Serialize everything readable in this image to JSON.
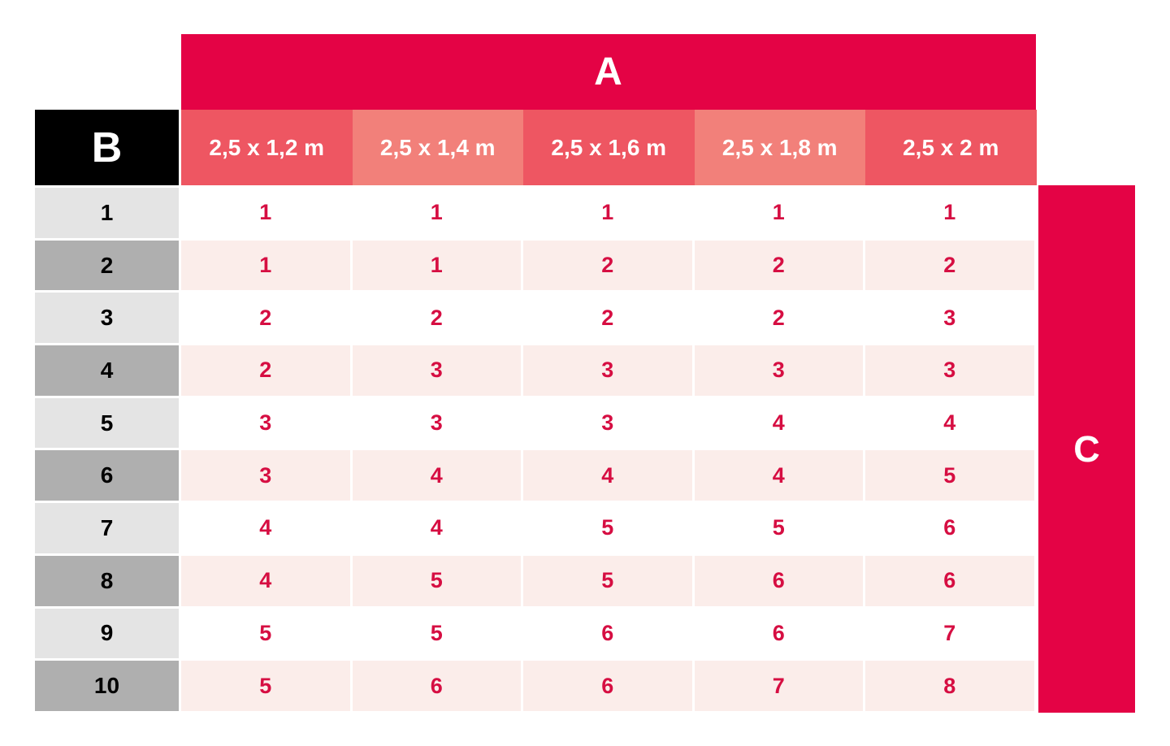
{
  "chart_data": {
    "type": "table",
    "top_header": "A",
    "left_header": "B",
    "right_header": "C",
    "columns": [
      "2,5 x 1,2 m",
      "2,5 x 1,4 m",
      "2,5 x 1,6 m",
      "2,5 x 1,8 m",
      "2,5 x 2 m"
    ],
    "row_labels": [
      "1",
      "2",
      "3",
      "4",
      "5",
      "6",
      "7",
      "8",
      "9",
      "10"
    ],
    "values": [
      [
        1,
        1,
        1,
        1,
        1
      ],
      [
        1,
        1,
        2,
        2,
        2
      ],
      [
        2,
        2,
        2,
        2,
        3
      ],
      [
        2,
        3,
        3,
        3,
        3
      ],
      [
        3,
        3,
        3,
        4,
        4
      ],
      [
        3,
        4,
        4,
        4,
        5
      ],
      [
        4,
        4,
        5,
        5,
        6
      ],
      [
        4,
        5,
        5,
        6,
        6
      ],
      [
        5,
        5,
        6,
        6,
        7
      ],
      [
        5,
        6,
        6,
        7,
        8
      ]
    ],
    "layout_hints": {
      "grid": "alternating row shading",
      "legend_position": "none"
    }
  },
  "colors": {
    "banner_red": "#e40345",
    "salmon_dark": "#ee5662",
    "salmon_light": "#f2807a",
    "row_pink": "#fbedea",
    "gray_light": "#e4e4e4",
    "gray_dark": "#afafaf",
    "value_red": "#d60e42",
    "corner_black": "#000000"
  }
}
